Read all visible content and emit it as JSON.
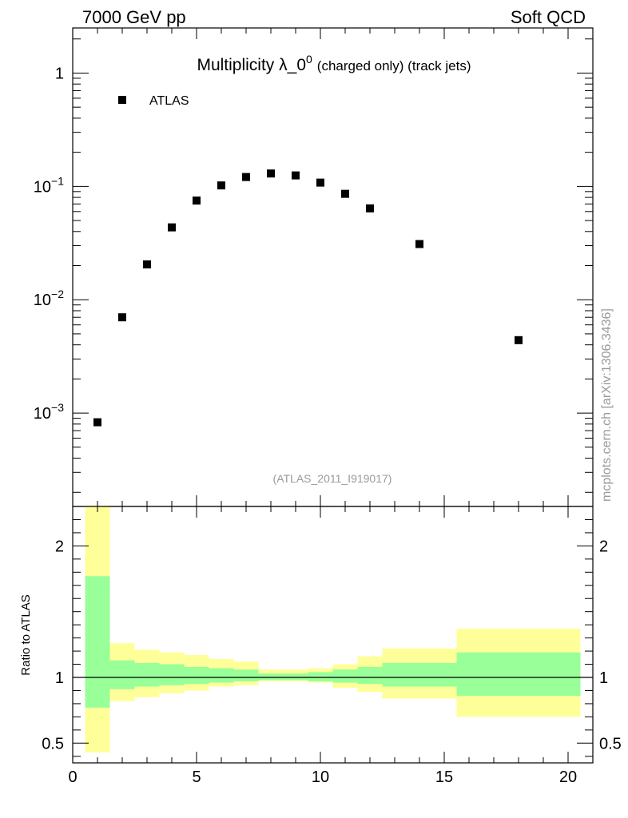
{
  "header": {
    "left": "7000 GeV pp",
    "right": "Soft QCD"
  },
  "side_label": "mcplots.cern.ch [arXiv:1306.3436]",
  "chart_data": [
    {
      "type": "scatter",
      "title": "Multiplicity λ_0",
      "title_sup": "0",
      "title_suffix": "(charged only) (track jets)",
      "reference": "(ATLAS_2011_I919017)",
      "yscale": "log",
      "xlim": [
        0,
        21
      ],
      "ylim": [
        0.00015,
        2.5
      ],
      "y_tick_labels": [
        {
          "value": 1,
          "base": "1",
          "exp": ""
        },
        {
          "value": 0.1,
          "base": "10",
          "exp": "−1"
        },
        {
          "value": 0.01,
          "base": "10",
          "exp": "−2"
        },
        {
          "value": 0.001,
          "base": "10",
          "exp": "−3"
        }
      ],
      "legend": {
        "position": "top-left",
        "entries": [
          "ATLAS"
        ]
      },
      "series": [
        {
          "name": "ATLAS",
          "marker": "square",
          "color": "#000000",
          "x": [
            1,
            2,
            3,
            4,
            5,
            6,
            7,
            8,
            9,
            10,
            11,
            12,
            14,
            18
          ],
          "y": [
            0.00083,
            0.007,
            0.0205,
            0.0435,
            0.075,
            0.102,
            0.121,
            0.13,
            0.125,
            0.108,
            0.086,
            0.064,
            0.031,
            0.0044
          ]
        }
      ]
    },
    {
      "type": "area",
      "ylabel": "Ratio to ATLAS",
      "xlim": [
        0,
        21
      ],
      "ylim": [
        0.35,
        2.3
      ],
      "x_tick_labels": [
        "0",
        "5",
        "10",
        "15",
        "20"
      ],
      "x_ticks": [
        0,
        5,
        10,
        15,
        20
      ],
      "y_tick_labels": [
        "0.5",
        "1",
        "2"
      ],
      "y_ticks": [
        0.5,
        1,
        2
      ],
      "reference_line": 1,
      "band_colors": {
        "stat": "#99ff99",
        "total": "#ffff99"
      },
      "bins": [
        {
          "lo": 0.5,
          "hi": 1.5,
          "stat": [
            0.77,
            1.77
          ],
          "total": [
            0.43,
            2.35
          ]
        },
        {
          "lo": 1.5,
          "hi": 2.5,
          "stat": [
            0.91,
            1.13
          ],
          "total": [
            0.82,
            1.26
          ]
        },
        {
          "lo": 2.5,
          "hi": 3.5,
          "stat": [
            0.93,
            1.11
          ],
          "total": [
            0.85,
            1.21
          ]
        },
        {
          "lo": 3.5,
          "hi": 4.5,
          "stat": [
            0.94,
            1.1
          ],
          "total": [
            0.88,
            1.19
          ]
        },
        {
          "lo": 4.5,
          "hi": 5.5,
          "stat": [
            0.95,
            1.08
          ],
          "total": [
            0.9,
            1.17
          ]
        },
        {
          "lo": 5.5,
          "hi": 6.5,
          "stat": [
            0.96,
            1.07
          ],
          "total": [
            0.93,
            1.14
          ]
        },
        {
          "lo": 6.5,
          "hi": 7.5,
          "stat": [
            0.97,
            1.06
          ],
          "total": [
            0.94,
            1.12
          ]
        },
        {
          "lo": 7.5,
          "hi": 8.5,
          "stat": [
            0.98,
            1.03
          ],
          "total": [
            0.97,
            1.06
          ]
        },
        {
          "lo": 8.5,
          "hi": 9.5,
          "stat": [
            0.98,
            1.03
          ],
          "total": [
            0.97,
            1.06
          ]
        },
        {
          "lo": 9.5,
          "hi": 10.5,
          "stat": [
            0.97,
            1.04
          ],
          "total": [
            0.96,
            1.07
          ]
        },
        {
          "lo": 10.5,
          "hi": 11.5,
          "stat": [
            0.96,
            1.06
          ],
          "total": [
            0.92,
            1.1
          ]
        },
        {
          "lo": 11.5,
          "hi": 12.5,
          "stat": [
            0.95,
            1.08
          ],
          "total": [
            0.89,
            1.16
          ]
        },
        {
          "lo": 12.5,
          "hi": 15.5,
          "stat": [
            0.93,
            1.11
          ],
          "total": [
            0.84,
            1.22
          ]
        },
        {
          "lo": 15.5,
          "hi": 20.5,
          "stat": [
            0.86,
            1.19
          ],
          "total": [
            0.7,
            1.37
          ]
        }
      ]
    }
  ]
}
